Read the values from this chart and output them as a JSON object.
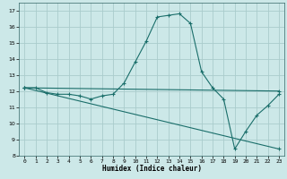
{
  "title": "",
  "xlabel": "Humidex (Indice chaleur)",
  "background_color": "#cce8e8",
  "grid_color": "#aacccc",
  "line_color": "#1a6e6a",
  "xlim": [
    -0.5,
    23.5
  ],
  "ylim": [
    8,
    17.5
  ],
  "yticks": [
    8,
    9,
    10,
    11,
    12,
    13,
    14,
    15,
    16,
    17
  ],
  "xticks": [
    0,
    1,
    2,
    3,
    4,
    5,
    6,
    7,
    8,
    9,
    10,
    11,
    12,
    13,
    14,
    15,
    16,
    17,
    18,
    19,
    20,
    21,
    22,
    23
  ],
  "series1_x": [
    0,
    1,
    2,
    3,
    4,
    5,
    6,
    7,
    8,
    9,
    10,
    11,
    12,
    13,
    14,
    15,
    16,
    17,
    18,
    19,
    20,
    21,
    22,
    23
  ],
  "series1_y": [
    12.2,
    12.2,
    11.9,
    11.8,
    11.8,
    11.7,
    11.5,
    11.7,
    11.8,
    12.5,
    13.8,
    15.1,
    16.6,
    16.7,
    16.8,
    16.2,
    13.2,
    12.2,
    11.5,
    8.4,
    9.5,
    10.5,
    11.1,
    11.8
  ],
  "series2_x": [
    0,
    23
  ],
  "series2_y": [
    12.2,
    12.0
  ],
  "series3_x": [
    0,
    23
  ],
  "series3_y": [
    12.2,
    8.4
  ]
}
